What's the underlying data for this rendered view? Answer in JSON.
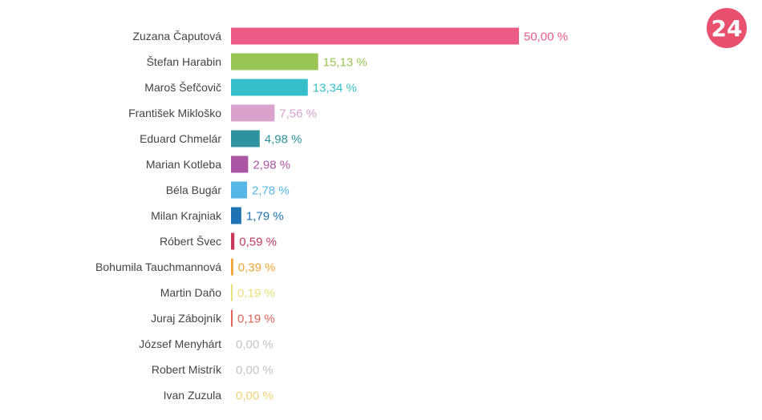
{
  "logo": {
    "text": "24",
    "color": "#e8506e"
  },
  "chart_data": {
    "type": "bar",
    "orientation": "horizontal",
    "xlim": [
      0,
      50
    ],
    "grid": false,
    "categories": [
      "Zuzana Čaputová",
      "Štefan Harabin",
      "Maroš Šefčovič",
      "František Mikloško",
      "Eduard Chmelár",
      "Marian Kotleba",
      "Béla Bugár",
      "Milan Krajniak",
      "Róbert Švec",
      "Bohumila Tauchmannová",
      "Martin Daňo",
      "Juraj Zábojník",
      "József Menyhárt",
      "Robert Mistrík",
      "Ivan Zuzula"
    ],
    "values": [
      50.0,
      15.13,
      13.34,
      7.56,
      4.98,
      2.98,
      2.78,
      1.79,
      0.59,
      0.39,
      0.19,
      0.19,
      0.0,
      0.0,
      0.0
    ],
    "value_labels": [
      "50,00 %",
      "15,13 %",
      "13,34 %",
      "7,56 %",
      "4,98 %",
      "2,98 %",
      "2,78 %",
      "1,79 %",
      "0,59 %",
      "0,39 %",
      "0,19 %",
      "0,19 %",
      "0,00 %",
      "0,00 %",
      "0,00 %"
    ],
    "colors": [
      "#ec5a86",
      "#99c555",
      "#36bfca",
      "#d9a2cd",
      "#2f939f",
      "#ac55a5",
      "#57b6e8",
      "#1f73b5",
      "#c5395e",
      "#f2a534",
      "#e8e07a",
      "#e16558",
      "#c4c4c4",
      "#c4c4c4",
      "#f4d27a"
    ]
  }
}
